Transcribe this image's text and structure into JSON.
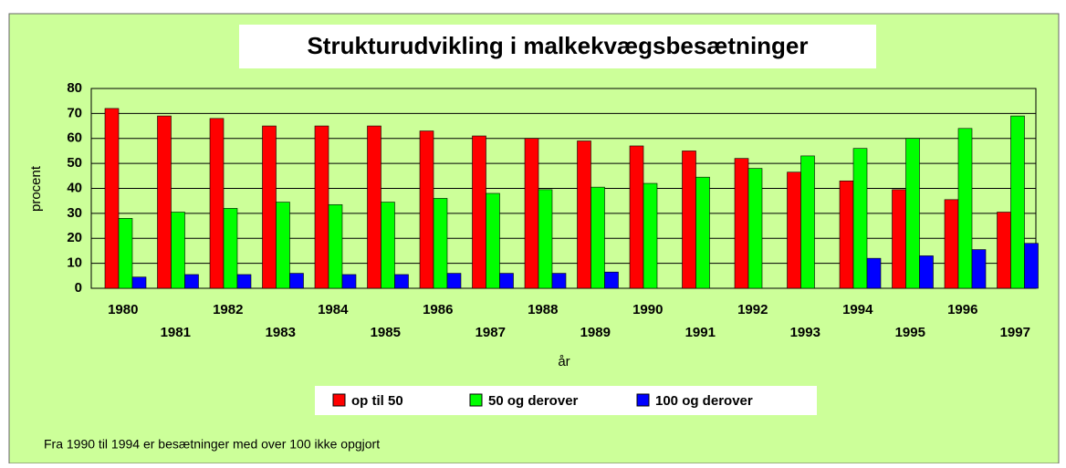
{
  "chart_data": {
    "type": "bar",
    "title": "Strukturudvikling i malkekvægsbesætninger",
    "y_label": "procent",
    "x_label": "år",
    "note": "Fra 1990 til 1994 er besætninger med over 100 ikke opgjort",
    "categories": [
      "1980",
      "1981",
      "1982",
      "1983",
      "1984",
      "1985",
      "1986",
      "1987",
      "1988",
      "1989",
      "1990",
      "1991",
      "1992",
      "1993",
      "1994",
      "1995",
      "1996",
      "1997"
    ],
    "series": [
      {
        "name": "op til 50",
        "color": "#ff0000",
        "values": [
          72,
          69,
          68,
          65,
          65,
          65,
          63,
          61,
          60,
          59,
          57,
          55,
          52,
          46.5,
          43,
          39.5,
          35.5,
          30.5
        ]
      },
      {
        "name": "50 og derover",
        "color": "#00ff00",
        "values": [
          28,
          30.5,
          32,
          34.5,
          33.5,
          34.5,
          36,
          38,
          39.5,
          40.5,
          42,
          44.5,
          48,
          53,
          56,
          60,
          64,
          69
        ]
      },
      {
        "name": "100 og derover",
        "color": "#0000ff",
        "values": [
          4.5,
          5.5,
          5.5,
          6,
          5.5,
          5.5,
          6,
          6,
          6,
          6.5,
          null,
          null,
          null,
          null,
          12,
          13,
          15.5,
          18
        ]
      }
    ],
    "ylim": [
      0,
      80
    ],
    "yticks": [
      0,
      10,
      20,
      30,
      40,
      50,
      60,
      70,
      80
    ],
    "grid": true
  }
}
